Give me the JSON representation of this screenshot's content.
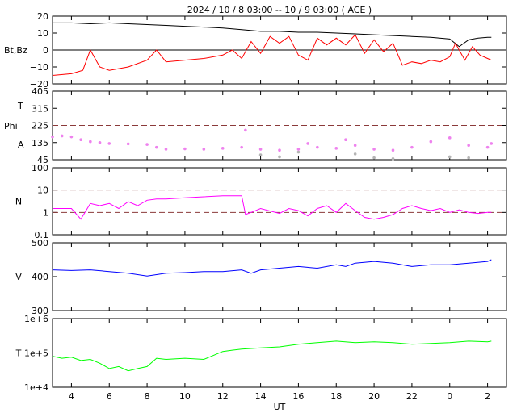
{
  "chart_data": {
    "type": "line",
    "title": "2024 / 10 /  8   03:00 -- 10 /  9   03:00 ( ACE )",
    "xlabel": "UT",
    "x_ticks": [
      "4",
      "6",
      "8",
      "10",
      "12",
      "14",
      "16",
      "18",
      "20",
      "22",
      "0",
      "2"
    ],
    "x_tick_hours": [
      4,
      6,
      8,
      10,
      12,
      14,
      16,
      18,
      20,
      22,
      24,
      26
    ],
    "xlim_hours": [
      3,
      27
    ],
    "panels": [
      {
        "id": "field",
        "ylabel": "Bt,Bz",
        "scale": "linear",
        "ylim": [
          -20,
          20
        ],
        "y_ticks": [
          "20",
          "10",
          "0",
          "−10",
          "−20"
        ],
        "y_tick_values": [
          20,
          10,
          0,
          -10,
          -20
        ],
        "zero_line": 0,
        "series": [
          {
            "key": "Bt",
            "color": "#000000",
            "x": [
              3,
              4,
              5,
              6,
              7,
              8,
              9,
              10,
              11,
              12,
              13,
              14,
              15,
              16,
              17,
              18,
              19,
              20,
              21,
              22,
              23,
              24,
              24.5,
              25,
              25.5,
              26,
              26.2
            ],
            "y": [
              16,
              16,
              15.5,
              16,
              15.5,
              15,
              14.5,
              14,
              13.5,
              13,
              12,
              11,
              11,
              10.5,
              10.5,
              10,
              9.5,
              9,
              8.5,
              8,
              7.5,
              6.5,
              2,
              6,
              7,
              7.5,
              7.5
            ]
          },
          {
            "key": "Bz",
            "color": "#ff0000",
            "x": [
              3,
              4,
              4.6,
              5,
              5.5,
              6,
              7,
              8,
              8.5,
              9,
              10,
              11,
              12,
              12.5,
              13,
              13.5,
              14,
              14.5,
              15,
              15.5,
              16,
              16.5,
              17,
              17.5,
              18,
              18.5,
              19,
              19.5,
              20,
              20.5,
              21,
              21.5,
              22,
              22.5,
              23,
              23.5,
              24,
              24.3,
              24.8,
              25.2,
              25.6,
              26,
              26.2
            ],
            "y": [
              -15,
              -14,
              -12,
              0,
              -10,
              -12,
              -10,
              -6,
              0,
              -7,
              -6,
              -5,
              -3,
              0,
              -5,
              5,
              -2,
              8,
              4,
              8,
              -3,
              -6,
              7,
              3,
              7,
              3,
              9,
              -2,
              6,
              -1,
              4,
              -9,
              -7,
              -8,
              -6,
              -7,
              -4,
              4,
              -6,
              2,
              -3,
              -5,
              -6
            ]
          }
        ]
      },
      {
        "id": "angles",
        "ylabel_top": "T",
        "ylabel_mid": "Phi",
        "ylabel_bot": "A",
        "scale": "linear",
        "ylim": [
          45,
          405
        ],
        "y_ticks": [
          "405",
          "315",
          "225",
          "135",
          "45"
        ],
        "y_tick_values": [
          405,
          315,
          225,
          135,
          45
        ],
        "ref_lines": [
          225
        ],
        "series": [
          {
            "key": "Phi",
            "color": "#ee82ee",
            "x": [
              3,
              3.5,
              4,
              4.5,
              5,
              5.5,
              6,
              7,
              8,
              8.5,
              9,
              10,
              11,
              12,
              13,
              13.2,
              14,
              15,
              16,
              16.5,
              17,
              18,
              18.5,
              19,
              20,
              21,
              22,
              23,
              24,
              25,
              26,
              26.2
            ],
            "y": [
              165,
              170,
              165,
              150,
              140,
              135,
              130,
              128,
              125,
              110,
              100,
              102,
              100,
              105,
              110,
              200,
              100,
              95,
              100,
              130,
              110,
              105,
              150,
              120,
              100,
              95,
              110,
              140,
              160,
              120,
              110,
              130
            ]
          },
          {
            "key": "Phi-gray",
            "color": "#b4b4b4",
            "x": [
              14,
              15,
              16,
              19,
              20,
              21,
              24,
              25
            ],
            "y": [
              70,
              60,
              85,
              75,
              55,
              50,
              60,
              55
            ]
          }
        ]
      },
      {
        "id": "density",
        "ylabel": "N",
        "scale": "log",
        "ylim": [
          0.1,
          100
        ],
        "y_ticks": [
          "100",
          "10",
          "1",
          "0.1"
        ],
        "y_tick_values": [
          100,
          10,
          1,
          0.1
        ],
        "ref_lines": [
          10,
          1
        ],
        "series": [
          {
            "key": "N",
            "color": "#ff00ff",
            "x": [
              3,
              3.5,
              4,
              4.5,
              5,
              5.5,
              6,
              6.5,
              7,
              7.5,
              8,
              8.5,
              9,
              10,
              11,
              12,
              13,
              13.2,
              13.5,
              14,
              15,
              15.5,
              16,
              16.5,
              17,
              17.5,
              18,
              18.5,
              19,
              19.5,
              20,
              20.5,
              21,
              21.5,
              22,
              22.5,
              23,
              23.5,
              24,
              24.5,
              25,
              25.5,
              26,
              26.2
            ],
            "y": [
              1.5,
              1.5,
              1.5,
              0.5,
              2.5,
              2,
              2.5,
              1.5,
              3,
              2,
              3.5,
              4,
              4,
              4.5,
              5,
              5.5,
              5.5,
              0.8,
              1,
              1.5,
              0.9,
              1.5,
              1.2,
              0.7,
              1.5,
              2,
              1,
              2.5,
              1.2,
              0.6,
              0.5,
              0.6,
              0.8,
              1.5,
              2,
              1.5,
              1.2,
              1.5,
              1,
              1.3,
              1,
              0.9,
              1,
              1
            ]
          }
        ]
      },
      {
        "id": "velocity",
        "ylabel": "V",
        "scale": "linear",
        "ylim": [
          300,
          500
        ],
        "y_ticks": [
          "500",
          "400",
          "300"
        ],
        "y_tick_values": [
          500,
          400,
          300
        ],
        "series": [
          {
            "key": "V",
            "color": "#0000ff",
            "x": [
              3,
              4,
              5,
              6,
              7,
              8,
              9,
              10,
              11,
              12,
              13,
              13.5,
              14,
              15,
              16,
              17,
              18,
              18.5,
              19,
              20,
              21,
              22,
              23,
              24,
              25,
              26,
              26.2
            ],
            "y": [
              420,
              418,
              420,
              415,
              410,
              402,
              410,
              412,
              415,
              415,
              420,
              410,
              420,
              425,
              430,
              425,
              435,
              430,
              440,
              445,
              440,
              430,
              435,
              435,
              440,
              445,
              450
            ]
          }
        ]
      },
      {
        "id": "temperature",
        "ylabel": "T",
        "scale": "log",
        "ylim": [
          10000,
          1000000
        ],
        "y_ticks": [
          "1e+6",
          "1e+5",
          "1e+4"
        ],
        "y_tick_values": [
          1000000,
          100000,
          10000
        ],
        "ref_lines": [
          100000
        ],
        "series": [
          {
            "key": "T",
            "color": "#00ff00",
            "x": [
              3,
              3.5,
              4,
              4.5,
              5,
              5.5,
              6,
              6.5,
              7,
              7.5,
              8,
              8.5,
              9,
              10,
              11,
              12,
              12.5,
              13,
              14,
              15,
              16,
              17,
              18,
              19,
              20,
              21,
              22,
              23,
              24,
              25,
              26,
              26.2
            ],
            "y": [
              80000,
              70000,
              75000,
              60000,
              65000,
              50000,
              35000,
              40000,
              30000,
              35000,
              40000,
              70000,
              65000,
              70000,
              65000,
              110000,
              120000,
              130000,
              140000,
              150000,
              180000,
              200000,
              220000,
              200000,
              210000,
              200000,
              180000,
              190000,
              200000,
              220000,
              210000,
              220000
            ]
          }
        ]
      }
    ]
  }
}
